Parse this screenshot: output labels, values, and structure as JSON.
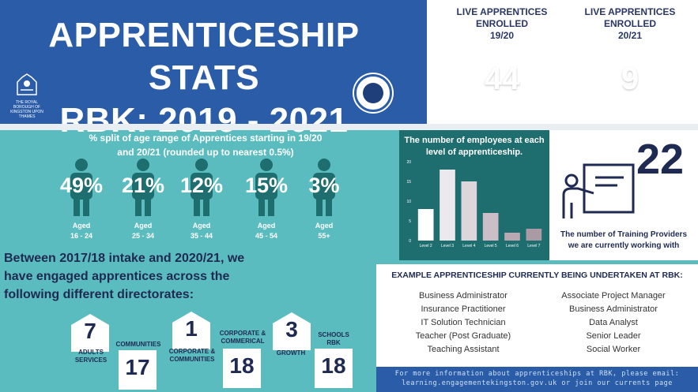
{
  "banner": {
    "title_line1": "APPRENTICESHIP STATS",
    "title_line2": "RBK: 2019 - 2021",
    "logo_text": "THE ROYAL BOROUGH OF KINGSTON UPON THAMES"
  },
  "stars": [
    {
      "label_line1": "LIVE APPRENTICES",
      "label_line2": "ENROLLED",
      "label_line3": "19/20",
      "value": "44"
    },
    {
      "label_line1": "LIVE APPRENTICES",
      "label_line2": "ENROLLED",
      "label_line3": "20/21",
      "value": "9"
    }
  ],
  "age": {
    "title_line1": "% split of age range of Apprentices starting in 19/20",
    "title_line2": "and 20/21  (rounded up to nearest 0.5%)",
    "items": [
      {
        "pct": "49%",
        "label": "Aged",
        "range": "16 - 24"
      },
      {
        "pct": "21%",
        "label": "Aged",
        "range": "25 - 34"
      },
      {
        "pct": "12%",
        "label": "Aged",
        "range": "35 - 44"
      },
      {
        "pct": "15%",
        "label": "Aged",
        "range": "45 - 54"
      },
      {
        "pct": "3%",
        "label": "Aged",
        "range": "55+"
      }
    ]
  },
  "directorates": {
    "intro_line1": "Between 2017/18  intake and 2020/21, we",
    "intro_line2": "have engaged apprentices across the",
    "intro_line3": "following different directorates:",
    "items": [
      {
        "value": "7",
        "label1": "ADULTS",
        "label2": "SERVICES"
      },
      {
        "value": "17",
        "label1": "COMMUNITIES",
        "label2": ""
      },
      {
        "value": "1",
        "label1": "CORPORATE &",
        "label2": "COMMUNITIES"
      },
      {
        "value": "18",
        "label1": "CORPORATE &",
        "label2": "COMMERICAL"
      },
      {
        "value": "3",
        "label1": "GROWTH",
        "label2": ""
      },
      {
        "value": "18",
        "label1": "SCHOOLS",
        "label2": "RBK"
      }
    ]
  },
  "chart_data": {
    "type": "bar",
    "title": "The number of employees at each level of apprenticeship.",
    "categories": [
      "Level 2",
      "Level 3",
      "Level 4",
      "Level 5",
      "Level 6",
      "Level 7"
    ],
    "values": [
      8,
      18,
      15,
      7,
      2,
      3
    ],
    "yticks": [
      "0",
      "5",
      "10",
      "15",
      "20"
    ],
    "ylim": [
      0,
      20
    ],
    "colors": [
      "#ffffff",
      "#ede8ec",
      "#ddd6db",
      "#cbbec6",
      "#b9a8b2",
      "#a99aa3"
    ]
  },
  "providers": {
    "value": "22",
    "text_line1": "The number of Training Providers",
    "text_line2": "we are currently working with"
  },
  "examples": {
    "title": "EXAMPLE APPRENTICESHIP CURRENTLY BEING UNDERTAKEN AT RBK:",
    "left": [
      "Business Administrator",
      "Insurance Practitioner",
      "IT Solution Technician",
      "Teacher (Post Graduate)",
      "Teaching Assistant"
    ],
    "right": [
      "Associate Project Manager",
      "Business Administrator",
      "Data Analyst",
      "Senior Leader",
      "Social Worker"
    ]
  },
  "footer": {
    "line1": "For more information about apprenticeships at RBK, please email:",
    "line2": "learning.engagementekingston.gov.uk or join our currents page"
  },
  "colors": {
    "banner": "#2a5ca8",
    "teal": "#5bbcc0",
    "navy": "#1f2a52",
    "chart_bg": "#1e6e6f",
    "star": "#f6b51f"
  }
}
